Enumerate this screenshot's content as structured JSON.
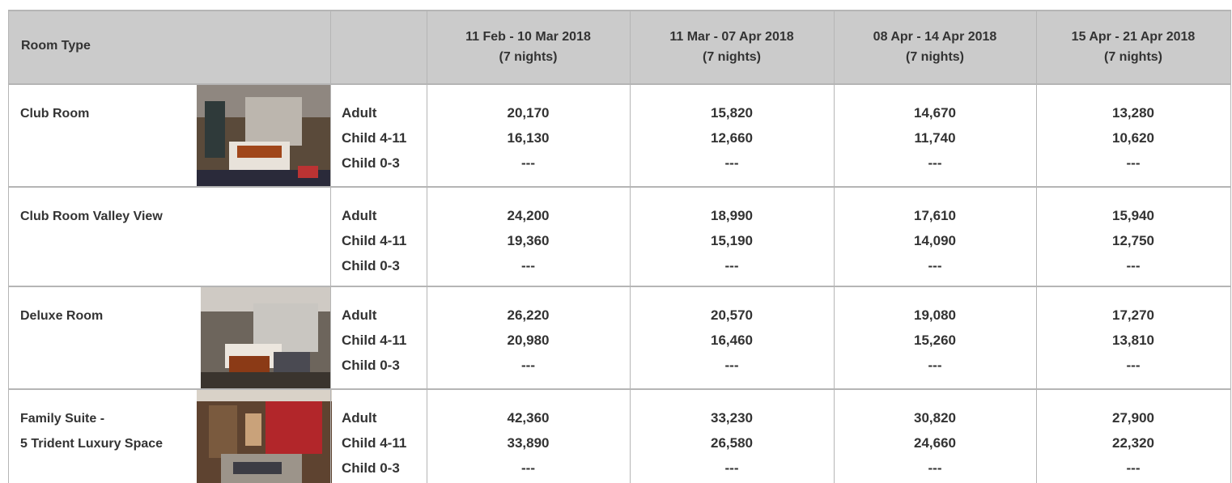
{
  "table": {
    "header": {
      "room_type": "Room Type",
      "periods": [
        {
          "dates": "11 Feb - 10 Mar 2018",
          "nights": "(7 nights)"
        },
        {
          "dates": "11 Mar - 07 Apr 2018",
          "nights": "(7 nights)"
        },
        {
          "dates": "08 Apr - 14 Apr 2018",
          "nights": "(7 nights)"
        },
        {
          "dates": "15 Apr - 21 Apr 2018",
          "nights": "(7 nights)"
        }
      ]
    },
    "rows": [
      {
        "room": [
          "Club Room"
        ],
        "guests": [
          "Adult",
          "Child 4-11",
          "Child 0-3"
        ],
        "prices": [
          [
            "20,170",
            "16,130",
            "---"
          ],
          [
            "15,820",
            "12,660",
            "---"
          ],
          [
            "14,670",
            "11,740",
            "---"
          ],
          [
            "13,280",
            "10,620",
            "---"
          ]
        ]
      },
      {
        "room": [
          "Club Room Valley View"
        ],
        "guests": [
          "Adult",
          "Child 4-11",
          "Child 0-3"
        ],
        "prices": [
          [
            "24,200",
            "19,360",
            "---"
          ],
          [
            "18,990",
            "15,190",
            "---"
          ],
          [
            "17,610",
            "14,090",
            "---"
          ],
          [
            "15,940",
            "12,750",
            "---"
          ]
        ]
      },
      {
        "room": [
          "Deluxe Room"
        ],
        "guests": [
          "Adult",
          "Child 4-11",
          "Child 0-3"
        ],
        "prices": [
          [
            "26,220",
            "20,980",
            "---"
          ],
          [
            "20,570",
            "16,460",
            "---"
          ],
          [
            "19,080",
            "15,260",
            "---"
          ],
          [
            "17,270",
            "13,810",
            "---"
          ]
        ]
      },
      {
        "room": [
          "Family Suite -",
          "5 Trident Luxury Space"
        ],
        "guests": [
          "Adult",
          "Child 4-11",
          "Child 0-3"
        ],
        "prices": [
          [
            "42,360",
            "33,890",
            "---"
          ],
          [
            "33,230",
            "26,580",
            "---"
          ],
          [
            "30,820",
            "24,660",
            "---"
          ],
          [
            "27,900",
            "22,320",
            "---"
          ]
        ]
      }
    ]
  }
}
